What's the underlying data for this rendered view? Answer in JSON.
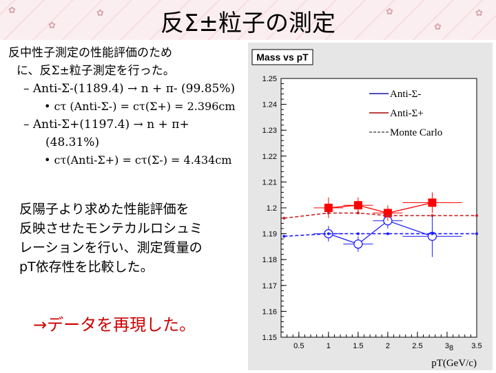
{
  "page": {
    "title": "反Σ±粒子の測定"
  },
  "bullets": {
    "intro": "反中性子測定の性能評価のため",
    "intro2": "に、反Σ±粒子測定を行った。",
    "decay1": "– Anti-Σ-(1189.4) → n + π- (99.85%)",
    "ctau1": "• cτ (Anti-Σ-) = cτ(Σ+) = 2.396cm",
    "decay2": "– Anti-Σ+(1197.4) → n + π+",
    "decay2b": "(48.31%)",
    "ctau2": "• cτ(Anti-Σ+) = cτ(Σ-) = 4.434cm"
  },
  "paragraph": {
    "line1": "反陽子より求めた性能評価を",
    "line2": "反映させたモンテカルロシュミ",
    "line3": "レーションを行い、測定質量の",
    "line4": "pT依存性を比較した。"
  },
  "conclusion": "→データを再現した。",
  "page_number": "8",
  "chart_data": {
    "type": "scatter",
    "title": "Mass vs pT",
    "xlabel": "pT(GeV/c)",
    "ylabel": "",
    "xlim": [
      0.2,
      3.5
    ],
    "ylim": [
      1.15,
      1.25
    ],
    "x_ticks": [
      "0.5",
      "1",
      "1.5",
      "2",
      "2.5",
      "3",
      "3.5"
    ],
    "y_ticks": [
      "1.15",
      "1.16",
      "1.17",
      "1.18",
      "1.19",
      "1.2",
      "1.21",
      "1.22",
      "1.23",
      "1.24",
      "1.25"
    ],
    "legend_position": "top-right",
    "series": [
      {
        "name": "Anti-Σ-",
        "color": "#1a1aff",
        "marker": "open-circle",
        "line": "solid",
        "points": [
          [
            1.0,
            1.19
          ],
          [
            1.5,
            1.186
          ],
          [
            2.0,
            1.195
          ],
          [
            2.75,
            1.189
          ]
        ],
        "xerr": [
          0.25,
          0.25,
          0.25,
          0.5
        ],
        "yerr": [
          0.003,
          0.003,
          0.003,
          0.008
        ]
      },
      {
        "name": "Anti-Σ+",
        "color": "#ff0000",
        "marker": "filled-square",
        "line": "solid",
        "points": [
          [
            1.0,
            1.2
          ],
          [
            1.5,
            1.201
          ],
          [
            2.0,
            1.198
          ],
          [
            2.75,
            1.202
          ]
        ],
        "xerr": [
          0.25,
          0.25,
          0.25,
          0.5
        ],
        "yerr": [
          0.004,
          0.003,
          0.003,
          0.004
        ]
      },
      {
        "name": "Monte Carlo",
        "color": "#cc2222",
        "marker": "small-dot",
        "line": "dashed",
        "points": [
          [
            0.25,
            1.196
          ],
          [
            1.0,
            1.198
          ],
          [
            1.5,
            1.198
          ],
          [
            2.0,
            1.197
          ],
          [
            2.75,
            1.197
          ],
          [
            3.5,
            1.197
          ]
        ]
      },
      {
        "name": "",
        "color": "#1a1aff",
        "marker": "small-dot",
        "line": "dashed",
        "points": [
          [
            0.25,
            1.189
          ],
          [
            1.0,
            1.19
          ],
          [
            1.5,
            1.19
          ],
          [
            2.0,
            1.19
          ],
          [
            2.75,
            1.19
          ],
          [
            3.5,
            1.19
          ]
        ]
      }
    ]
  }
}
